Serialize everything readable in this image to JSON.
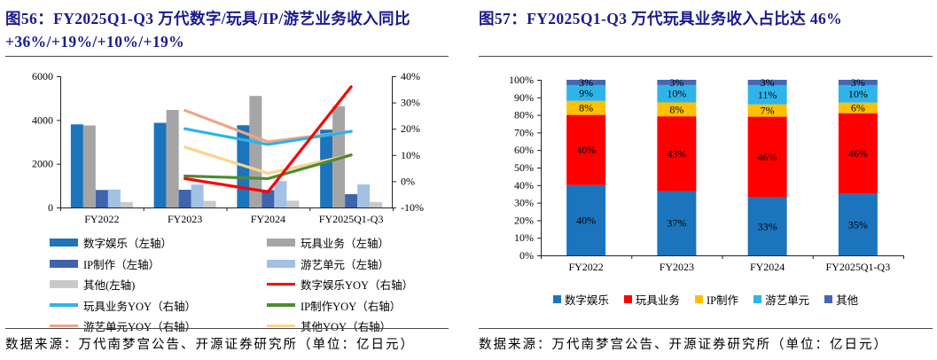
{
  "panels": {
    "left": {
      "title": "图56：FY2025Q1-Q3 万代数字/玩具/IP/游艺业务收入同比+36%/+19%/+10%/+19%",
      "source_note": "数据来源：万代南梦宫公告、开源证券研究所（单位：亿日元）",
      "legend": [
        {
          "label": "数字娱乐（左轴）",
          "color": "#1b74bc",
          "kind": "bar"
        },
        {
          "label": "玩具业务（左轴）",
          "color": "#a5a5a5",
          "kind": "bar"
        },
        {
          "label": "IP制作（左轴）",
          "color": "#3f63ad",
          "kind": "bar"
        },
        {
          "label": "游艺单元（左轴）",
          "color": "#a3c0e5",
          "kind": "bar"
        },
        {
          "label": "其他(左轴)",
          "color": "#c9c9c9",
          "kind": "bar"
        },
        {
          "label": "数字娱乐YOY（右轴）",
          "color": "#fe0000",
          "kind": "line"
        },
        {
          "label": "玩具业务YOY（右轴）",
          "color": "#2cb3ea",
          "kind": "line"
        },
        {
          "label": "IP制作YOY（右轴）",
          "color": "#4e8b33",
          "kind": "line"
        },
        {
          "label": "游艺单元YOY（右轴）",
          "color": "#f0a488",
          "kind": "line"
        },
        {
          "label": "其他YOY（右轴）",
          "color": "#fbd48c",
          "kind": "line"
        }
      ]
    },
    "right": {
      "title": "图57：FY2025Q1-Q3 万代玩具业务收入占比达 46%",
      "source_note": "数据来源：万代南梦宫公告、开源证券研究所（单位：亿日元）"
    }
  },
  "chart_data": [
    {
      "type": "bar",
      "subtype": "grouped-bar-with-yoy-lines-dual-axis",
      "title": "FY2025Q1-Q3 万代数字/玩具/IP/游艺业务收入同比+36%/+19%/+10%/+19%",
      "categories": [
        "FY2022",
        "FY2023",
        "FY2024",
        "FY2025Q1-Q3"
      ],
      "y_left": {
        "min": 0,
        "max": 6000,
        "tick_values": [
          0,
          2000,
          4000,
          6000
        ],
        "tick_labels": [
          "0",
          "2000",
          "4000",
          "6000"
        ]
      },
      "y_right": {
        "min": -10,
        "max": 40,
        "tick_values": [
          -10,
          0,
          10,
          20,
          30,
          40
        ],
        "tick_labels": [
          "-10%",
          "0%",
          "10%",
          "20%",
          "30%",
          "40%"
        ]
      },
      "bar_series": [
        {
          "name": "数字娱乐（左轴）",
          "color": "#1b74bc",
          "values": [
            3800,
            3870,
            3760,
            3560
          ]
        },
        {
          "name": "玩具业务（左轴）",
          "color": "#a5a5a5",
          "values": [
            3750,
            4460,
            5100,
            4630
          ]
        },
        {
          "name": "IP制作（左轴）",
          "color": "#3f63ad",
          "values": [
            800,
            810,
            800,
            610
          ]
        },
        {
          "name": "游艺单元（左轴）",
          "color": "#a3c0e5",
          "values": [
            820,
            1050,
            1210,
            1050
          ]
        },
        {
          "name": "其他(左轴)",
          "color": "#c9c9c9",
          "values": [
            250,
            300,
            310,
            250
          ]
        }
      ],
      "line_series": [
        {
          "name": "数字娱乐YOY（右轴）",
          "color": "#fe0000",
          "values": [
            null,
            1,
            -4,
            36
          ]
        },
        {
          "name": "玩具业务YOY（右轴）",
          "color": "#2cb3ea",
          "values": [
            null,
            20,
            14,
            19
          ]
        },
        {
          "name": "IP制作YOY（右轴）",
          "color": "#4e8b33",
          "values": [
            null,
            2,
            1,
            10
          ]
        },
        {
          "name": "游艺单元YOY（右轴）",
          "color": "#f0a488",
          "values": [
            null,
            27,
            15,
            19
          ]
        },
        {
          "name": "其他YOY（右轴）",
          "color": "#fbd48c",
          "values": [
            null,
            13,
            3,
            10
          ]
        }
      ],
      "legend_position": "bottom",
      "grid": false
    },
    {
      "type": "bar",
      "subtype": "stacked-100-percent",
      "title": "FY2025Q1-Q3 万代玩具业务收入占比达 46%",
      "categories": [
        "FY2022",
        "FY2023",
        "FY2024",
        "FY2025Q1-Q3"
      ],
      "y_axis": {
        "min": 0,
        "max": 100,
        "tick_values": [
          0,
          10,
          20,
          30,
          40,
          50,
          60,
          70,
          80,
          90,
          100
        ],
        "tick_labels": [
          "0%",
          "10%",
          "20%",
          "30%",
          "40%",
          "50%",
          "60%",
          "70%",
          "80%",
          "90%",
          "100%"
        ]
      },
      "series": [
        {
          "name": "数字娱乐",
          "color": "#1b74bc",
          "values": [
            40,
            37,
            33,
            35
          ]
        },
        {
          "name": "玩具业务",
          "color": "#fe0000",
          "values": [
            40,
            43,
            46,
            46
          ]
        },
        {
          "name": "IP制作",
          "color": "#ffc000",
          "values": [
            8,
            8,
            7,
            6
          ]
        },
        {
          "name": "游艺单元",
          "color": "#2fb4e9",
          "values": [
            9,
            10,
            11,
            10
          ]
        },
        {
          "name": "其他",
          "color": "#4468b2",
          "values": [
            3,
            3,
            3,
            3
          ]
        }
      ],
      "data_labels": true,
      "legend_position": "bottom",
      "grid": false
    }
  ]
}
